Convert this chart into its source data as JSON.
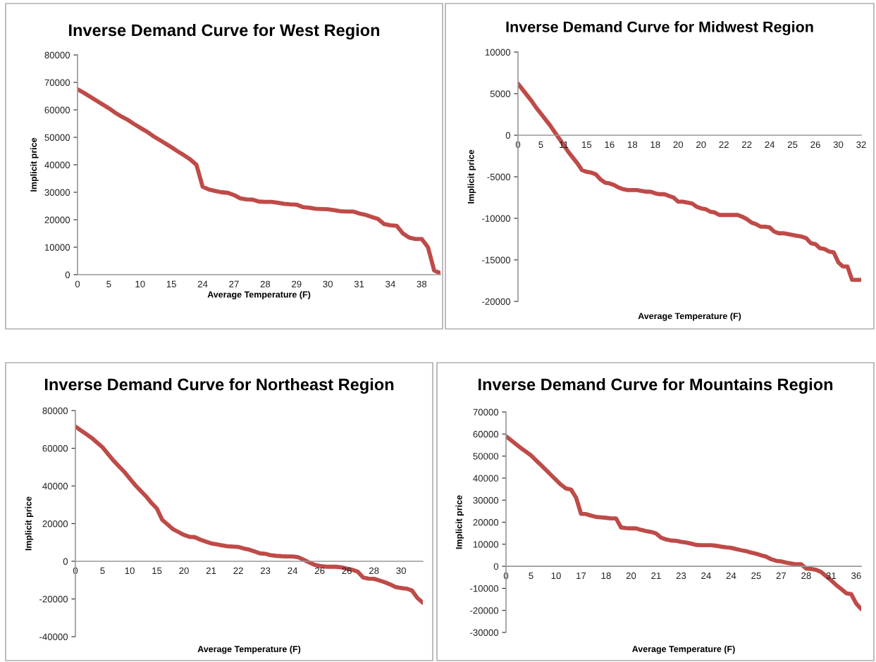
{
  "chart_data": [
    {
      "type": "line",
      "title": "Inverse Demand Curve for West Region",
      "xlabel": "Average Temperature (F)",
      "ylabel": "Implicit price",
      "ylim": [
        0,
        80000
      ],
      "yticks": [
        0,
        10000,
        20000,
        30000,
        40000,
        50000,
        60000,
        70000,
        80000
      ],
      "grid": false,
      "marker": "none",
      "line_style": "solid",
      "categories": [
        "0",
        null,
        null,
        null,
        null,
        "5",
        null,
        null,
        null,
        null,
        "10",
        null,
        null,
        null,
        null,
        "15",
        null,
        null,
        null,
        null,
        "24",
        null,
        null,
        null,
        null,
        "27",
        null,
        null,
        null,
        null,
        "28",
        null,
        null,
        null,
        null,
        "29",
        null,
        null,
        null,
        null,
        "30",
        null,
        null,
        null,
        null,
        "31",
        null,
        null,
        null,
        null,
        "34",
        null,
        null,
        null,
        null,
        "38",
        null,
        null,
        null
      ],
      "series": [
        {
          "color": "#be4b48",
          "values": [
            67500,
            66200,
            64800,
            63400,
            62000,
            60600,
            59000,
            57600,
            56400,
            54900,
            53500,
            52200,
            50600,
            49200,
            47800,
            46400,
            44900,
            43500,
            42000,
            40000,
            32000,
            31000,
            30500,
            30000,
            29800,
            29000,
            27800,
            27400,
            27300,
            26600,
            26500,
            26500,
            26200,
            25800,
            25600,
            25500,
            24600,
            24400,
            24000,
            23900,
            23800,
            23500,
            23100,
            23000,
            23000,
            22300,
            21800,
            21000,
            20300,
            18400,
            18000,
            17800,
            15000,
            13500,
            13000,
            13000,
            10000,
            1500,
            500
          ]
        }
      ]
    },
    {
      "type": "line",
      "title": "Inverse Demand Curve for Midwest Region",
      "xlabel": "Average Temperature (F)",
      "ylabel": "Implicit price",
      "ylim": [
        -20000,
        10000
      ],
      "yticks": [
        -20000,
        -15000,
        -10000,
        -5000,
        0,
        5000,
        10000
      ],
      "grid": false,
      "marker": "none",
      "line_style": "solid",
      "categories": [
        "0",
        null,
        null,
        null,
        null,
        "5",
        null,
        null,
        null,
        null,
        "11",
        null,
        null,
        null,
        null,
        "15",
        null,
        null,
        null,
        null,
        "16",
        null,
        null,
        null,
        null,
        "18",
        null,
        null,
        null,
        null,
        "18",
        null,
        null,
        null,
        null,
        "20",
        null,
        null,
        null,
        null,
        "20",
        null,
        null,
        null,
        null,
        "22",
        null,
        null,
        null,
        null,
        "22",
        null,
        null,
        null,
        null,
        "24",
        null,
        null,
        null,
        null,
        "25",
        null,
        null,
        null,
        null,
        "26",
        null,
        null,
        null,
        null,
        "30",
        null,
        null,
        null,
        null,
        "32"
      ],
      "series": [
        {
          "color": "#be4b48",
          "values": [
            6200,
            5500,
            4800,
            4100,
            3300,
            2600,
            1900,
            1200,
            400,
            -400,
            -1200,
            -2000,
            -2700,
            -3400,
            -4200,
            -4400,
            -4500,
            -4700,
            -5300,
            -5700,
            -5800,
            -6000,
            -6300,
            -6500,
            -6600,
            -6600,
            -6600,
            -6700,
            -6800,
            -6800,
            -7000,
            -7100,
            -7100,
            -7300,
            -7500,
            -8000,
            -8000,
            -8100,
            -8200,
            -8600,
            -8800,
            -8900,
            -9200,
            -9300,
            -9600,
            -9600,
            -9600,
            -9600,
            -9600,
            -9800,
            -10100,
            -10500,
            -10700,
            -11000,
            -11000,
            -11100,
            -11600,
            -11800,
            -11800,
            -11900,
            -12000,
            -12100,
            -12200,
            -12400,
            -13000,
            -13100,
            -13600,
            -13700,
            -14000,
            -14100,
            -15300,
            -15800,
            -15800,
            -17400,
            -17400,
            -17400
          ]
        }
      ]
    },
    {
      "type": "line",
      "title": "Inverse Demand Curve for Northeast Region",
      "xlabel": "Average Temperature (F)",
      "ylabel": "Implicit price",
      "ylim": [
        -40000,
        80000
      ],
      "yticks": [
        -40000,
        -20000,
        0,
        20000,
        40000,
        60000,
        80000
      ],
      "grid": false,
      "marker": "none",
      "line_style": "solid",
      "categories": [
        "0",
        null,
        null,
        null,
        null,
        "5",
        null,
        null,
        null,
        null,
        "10",
        null,
        null,
        null,
        null,
        "15",
        null,
        null,
        null,
        null,
        "20",
        null,
        null,
        null,
        null,
        "21",
        null,
        null,
        null,
        null,
        "22",
        null,
        null,
        null,
        null,
        "23",
        null,
        null,
        null,
        null,
        "24",
        null,
        null,
        null,
        null,
        "26",
        null,
        null,
        null,
        null,
        "26",
        null,
        null,
        null,
        null,
        "28",
        null,
        null,
        null,
        null,
        "30",
        null,
        null,
        null,
        null
      ],
      "series": [
        {
          "color": "#be4b48",
          "values": [
            71500,
            69500,
            67500,
            65500,
            63000,
            60500,
            57000,
            53500,
            50500,
            47500,
            44000,
            40500,
            37500,
            34500,
            31000,
            28000,
            22000,
            19500,
            17000,
            15500,
            14000,
            13000,
            12800,
            11500,
            10500,
            9500,
            9000,
            8500,
            8000,
            7800,
            7600,
            6800,
            6200,
            5200,
            4200,
            4000,
            3200,
            2900,
            2700,
            2600,
            2600,
            2200,
            900,
            -500,
            -1800,
            -2500,
            -2800,
            -2900,
            -2900,
            -3200,
            -3900,
            -4500,
            -5500,
            -8600,
            -9200,
            -9300,
            -10200,
            -11100,
            -12300,
            -13700,
            -14200,
            -14500,
            -15500,
            -19500,
            -22000
          ]
        }
      ]
    },
    {
      "type": "line",
      "title": "Inverse Demand Curve for Mountains Region",
      "xlabel": "Average Temperature (F)",
      "ylabel": "Implicit price",
      "ylim": [
        -30000,
        70000
      ],
      "yticks": [
        -30000,
        -20000,
        -10000,
        0,
        10000,
        20000,
        30000,
        40000,
        50000,
        60000,
        70000
      ],
      "grid": false,
      "marker": "none",
      "line_style": "solid",
      "categories": [
        "0",
        null,
        null,
        null,
        null,
        "5",
        null,
        null,
        null,
        null,
        "10",
        null,
        null,
        null,
        null,
        "17",
        null,
        null,
        null,
        null,
        "18",
        null,
        null,
        null,
        null,
        "20",
        null,
        null,
        null,
        null,
        "21",
        null,
        null,
        null,
        null,
        "23",
        null,
        null,
        null,
        null,
        "24",
        null,
        null,
        null,
        null,
        "24",
        null,
        null,
        null,
        null,
        "25",
        null,
        null,
        null,
        null,
        "27",
        null,
        null,
        null,
        null,
        "28",
        null,
        null,
        null,
        null,
        "31",
        null,
        null,
        null,
        null,
        "36",
        null
      ],
      "series": [
        {
          "color": "#be4b48",
          "values": [
            59000,
            57200,
            55400,
            53600,
            52000,
            50300,
            48100,
            45900,
            43700,
            41400,
            39200,
            37000,
            35300,
            34800,
            31200,
            23800,
            23700,
            23000,
            22400,
            22200,
            22000,
            21700,
            21700,
            17600,
            17300,
            17200,
            17200,
            16500,
            16000,
            15600,
            14900,
            13000,
            12200,
            11700,
            11600,
            11100,
            10800,
            10300,
            9700,
            9600,
            9600,
            9600,
            9300,
            8900,
            8600,
            8400,
            7800,
            7300,
            6900,
            6200,
            5700,
            5000,
            4400,
            3200,
            2500,
            2200,
            1700,
            1300,
            900,
            900,
            -1000,
            -1200,
            -1600,
            -2600,
            -4500,
            -6400,
            -8500,
            -10300,
            -12200,
            -12600,
            -16900,
            -19400
          ]
        }
      ]
    }
  ]
}
